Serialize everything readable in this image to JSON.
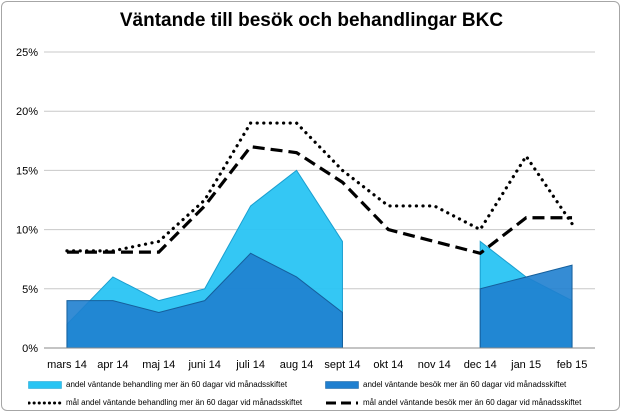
{
  "chart_data": {
    "type": "area",
    "title": "Väntande till besök och behandlingar BKC",
    "categories": [
      "mars 14",
      "apr 14",
      "maj 14",
      "juni 14",
      "juli 14",
      "aug 14",
      "sept 14",
      "okt 14",
      "nov 14",
      "dec 14",
      "jan 15",
      "feb 15"
    ],
    "y_ticks": [
      "0%",
      "5%",
      "10%",
      "15%",
      "20%",
      "25%"
    ],
    "ylim": [
      0,
      25
    ],
    "y_unit": "%",
    "grid": true,
    "legend_position": "bottom",
    "series": [
      {
        "name": "andel väntande behandling mer än 60 dagar vid månadsskiftet",
        "kind": "area",
        "color": "#29c4f3",
        "values": [
          2,
          6,
          4,
          5,
          12,
          15,
          9,
          null,
          null,
          9,
          6,
          4
        ]
      },
      {
        "name": "andel väntande besök mer än 60 dagar vid månadsskiftet",
        "kind": "area",
        "color": "#1f7fcf",
        "values": [
          4,
          4,
          3,
          4,
          8,
          6,
          3,
          null,
          null,
          5,
          6,
          7
        ]
      },
      {
        "name": "mål andel väntande behandling mer än 60 dagar vid månadsskiftet",
        "kind": "line",
        "style": "dotted",
        "color": "#000000",
        "values": [
          8.2,
          8.2,
          9,
          12.5,
          19,
          19,
          15,
          12,
          12,
          10,
          16.2,
          10.5
        ]
      },
      {
        "name": "mål andel  väntande besök mer än 60 dagar vid månadsskiftet",
        "kind": "line",
        "style": "dashed",
        "color": "#000000",
        "values": [
          8.1,
          8.1,
          8.1,
          12,
          17,
          16.5,
          14,
          10,
          9,
          8,
          11,
          11
        ]
      }
    ]
  }
}
